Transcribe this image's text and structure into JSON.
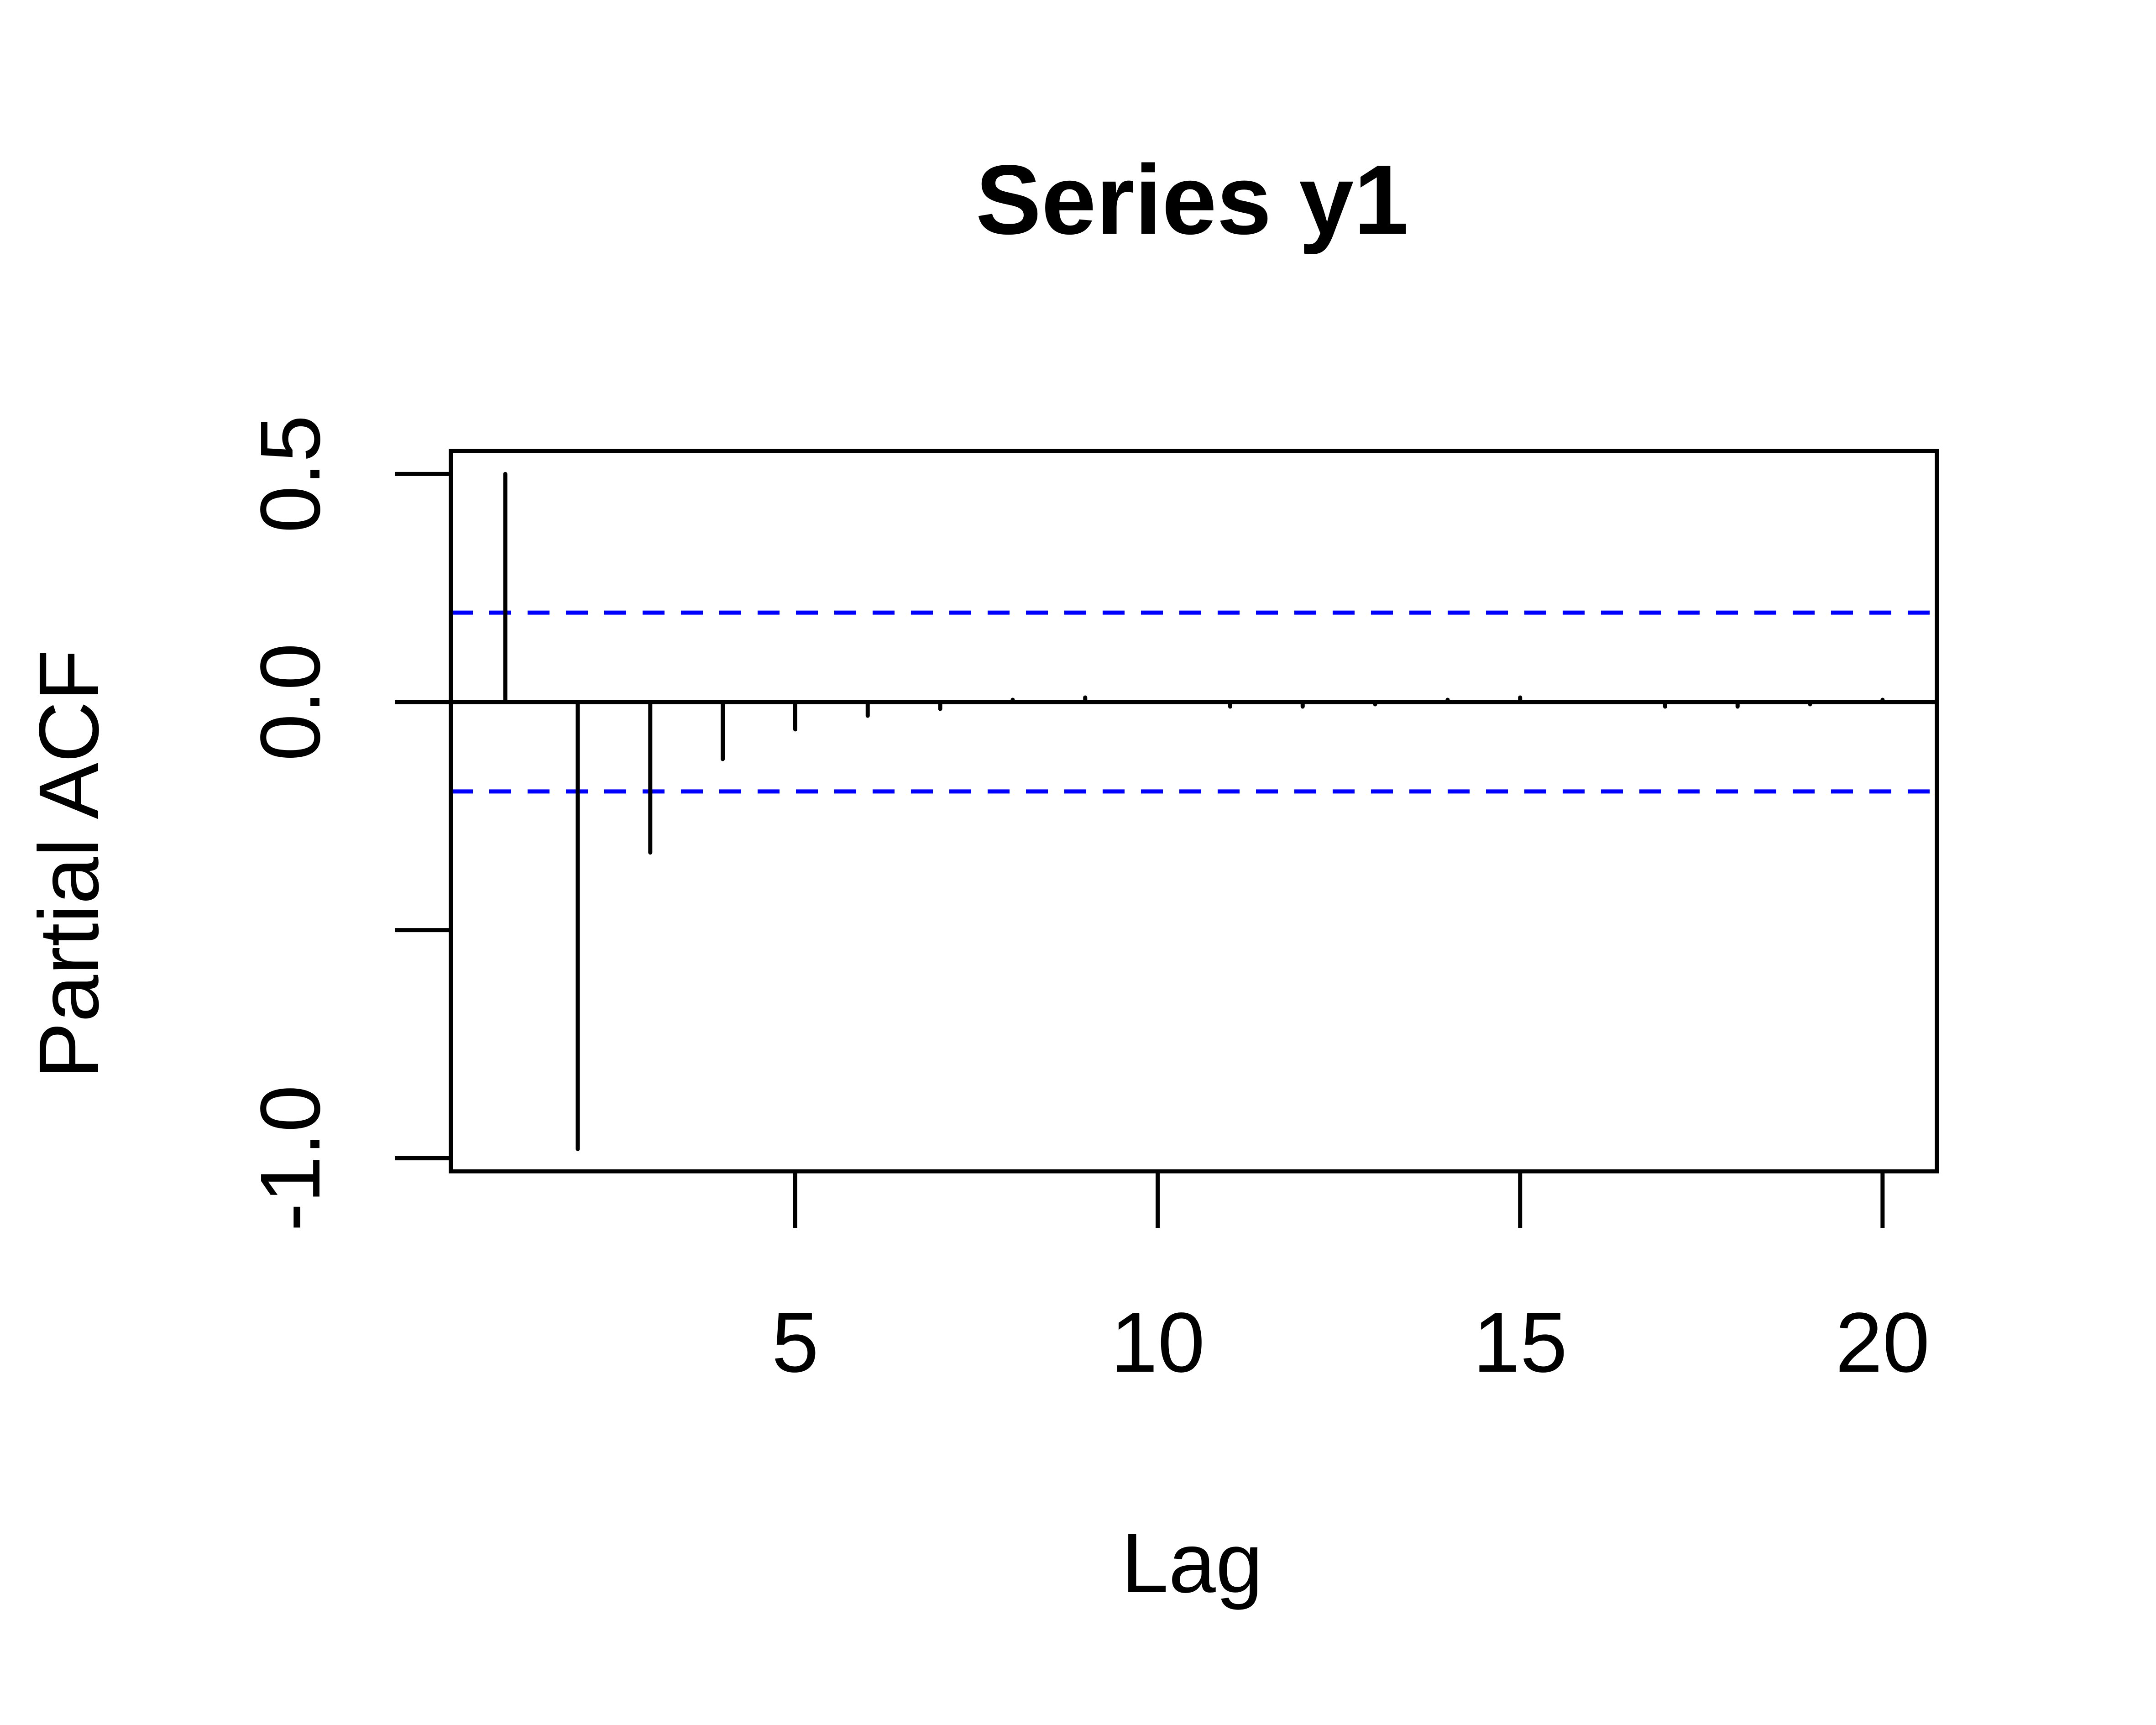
{
  "chart_data": {
    "type": "bar",
    "title": "Series  y1",
    "xlabel": "Lag",
    "ylabel": "Partial ACF",
    "x": [
      1,
      2,
      3,
      4,
      5,
      6,
      7,
      8,
      9,
      10,
      11,
      12,
      13,
      14,
      15,
      16,
      17,
      18,
      19,
      20
    ],
    "values": [
      0.5,
      -0.98,
      -0.33,
      -0.125,
      -0.06,
      -0.03,
      -0.015,
      0.005,
      0.01,
      0.0,
      -0.01,
      -0.01,
      -0.005,
      0.005,
      0.01,
      0.0,
      -0.01,
      -0.01,
      -0.005,
      0.005
    ],
    "xlim": [
      0.25,
      20.75
    ],
    "ylim": [
      -1.0288,
      0.5504
    ],
    "xticks": [
      5,
      10,
      15,
      20
    ],
    "xtick_labels": [
      "5",
      "10",
      "15",
      "20"
    ],
    "yticks": [
      -1.0,
      -0.5,
      0.0,
      0.5
    ],
    "ytick_labels": [
      "-1.0",
      "",
      "0.0",
      "0.5"
    ],
    "confidence_limits": [
      0.196,
      -0.196
    ],
    "zero_line": 0.0,
    "confidence_color": "#0000ff",
    "bar_color": "#000000",
    "grid": false,
    "legend": "none"
  }
}
